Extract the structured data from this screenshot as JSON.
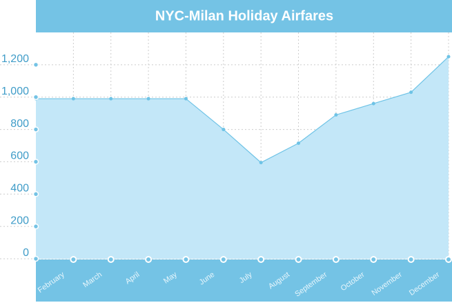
{
  "chart_data": {
    "type": "area",
    "title": "NYC-Milan Holiday Airfares",
    "categories": [
      null,
      "February",
      "March",
      "April",
      "May",
      "June",
      "July",
      "August",
      "September",
      "October",
      "November",
      "December"
    ],
    "values": [
      990,
      990,
      990,
      990,
      990,
      800,
      595,
      715,
      890,
      960,
      1030,
      1250
    ],
    "color": "#6ec3e6",
    "fill": "#c3e7f8",
    "ylim": [
      0,
      1400
    ],
    "yticks": [
      0,
      200,
      400,
      600,
      800,
      {
        "value": 1000,
        "label": "1,000"
      },
      {
        "value": 1200,
        "label": "1,200"
      }
    ],
    "grid": true
  }
}
